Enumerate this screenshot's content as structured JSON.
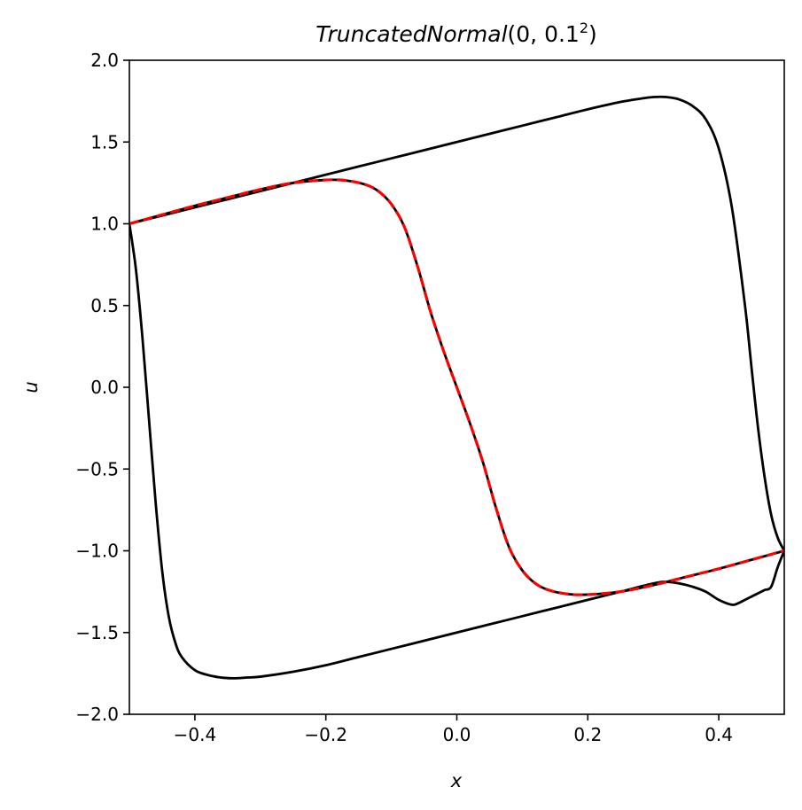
{
  "chart_data": {
    "type": "line",
    "title": "TruncatedNormal(0, 0.1²)",
    "title_parts": {
      "name": "TruncatedNormal",
      "args": "(0, 0.1",
      "exponent": "2",
      "close": ")"
    },
    "xlabel": "x",
    "ylabel": "u",
    "xlim": [
      -0.5,
      0.5
    ],
    "ylim": [
      -2.0,
      2.0
    ],
    "x_ticks": [
      {
        "value": -0.4,
        "label": "−0.4"
      },
      {
        "value": -0.2,
        "label": "−0.2"
      },
      {
        "value": 0.0,
        "label": "0.0"
      },
      {
        "value": 0.2,
        "label": "0.2"
      },
      {
        "value": 0.4,
        "label": "0.4"
      }
    ],
    "y_ticks": [
      {
        "value": 2.0,
        "label": "2.0"
      },
      {
        "value": 1.5,
        "label": "1.5"
      },
      {
        "value": 1.0,
        "label": "1.0"
      },
      {
        "value": 0.5,
        "label": "0.5"
      },
      {
        "value": 0.0,
        "label": "0.0"
      },
      {
        "value": -0.5,
        "label": "−0.5"
      },
      {
        "value": -1.0,
        "label": "−1.0"
      },
      {
        "value": -1.5,
        "label": "−1.5"
      },
      {
        "value": -2.0,
        "label": "−2.0"
      }
    ],
    "grid": false,
    "series": [
      {
        "color": "#000000",
        "style": "solid",
        "x": [
          -0.5,
          -0.49,
          -0.48,
          -0.47,
          -0.46,
          -0.45,
          -0.44,
          -0.43,
          -0.42,
          -0.4,
          -0.38,
          -0.36,
          -0.34,
          -0.32,
          -0.3,
          -0.25,
          -0.2,
          -0.15,
          -0.1,
          -0.05,
          0.0,
          0.05,
          0.1,
          0.15,
          0.2,
          0.25,
          0.3,
          0.32,
          0.34,
          0.36,
          0.38,
          0.4,
          0.42,
          0.43,
          0.44,
          0.45,
          0.46,
          0.47,
          0.48,
          0.49,
          0.5
        ],
        "y": [
          1.0,
          0.72,
          0.3,
          -0.2,
          -0.7,
          -1.12,
          -1.4,
          -1.56,
          -1.65,
          -1.73,
          -1.76,
          -1.775,
          -1.78,
          -1.775,
          -1.77,
          -1.74,
          -1.7,
          -1.65,
          -1.6,
          -1.55,
          -1.5,
          -1.45,
          -1.4,
          -1.35,
          -1.3,
          -1.25,
          -1.2,
          -1.19,
          -1.2,
          -1.22,
          -1.25,
          -1.3,
          -1.33,
          -1.32,
          -1.3,
          -1.28,
          -1.26,
          -1.24,
          -1.22,
          -1.1,
          -1.0
        ]
      },
      {
        "color": "#000000",
        "style": "solid",
        "x": [
          -0.5,
          -0.45,
          -0.4,
          -0.35,
          -0.3,
          -0.25,
          -0.2,
          -0.15,
          -0.1,
          -0.05,
          0.0,
          0.05,
          0.1,
          0.15,
          0.2,
          0.25,
          0.28,
          0.3,
          0.32,
          0.34,
          0.36,
          0.38,
          0.4,
          0.42,
          0.44,
          0.45,
          0.46,
          0.47,
          0.48,
          0.49,
          0.5
        ],
        "y": [
          1.0,
          1.05,
          1.1,
          1.15,
          1.2,
          1.25,
          1.3,
          1.35,
          1.4,
          1.45,
          1.5,
          1.55,
          1.6,
          1.65,
          1.7,
          1.745,
          1.765,
          1.775,
          1.775,
          1.76,
          1.72,
          1.64,
          1.46,
          1.1,
          0.5,
          0.12,
          -0.25,
          -0.55,
          -0.78,
          -0.92,
          -1.0
        ]
      },
      {
        "color": "#000000",
        "style": "solid",
        "x": [
          -0.5,
          -0.45,
          -0.4,
          -0.35,
          -0.3,
          -0.25,
          -0.2,
          -0.17,
          -0.14,
          -0.12,
          -0.1,
          -0.08,
          -0.06,
          -0.04,
          -0.02,
          0.0,
          0.02,
          0.04,
          0.06,
          0.08,
          0.1,
          0.12,
          0.14,
          0.17,
          0.2,
          0.25,
          0.3,
          0.35,
          0.4,
          0.45,
          0.5
        ],
        "y": [
          1.0,
          1.055,
          1.11,
          1.16,
          1.21,
          1.25,
          1.268,
          1.265,
          1.24,
          1.2,
          1.12,
          0.98,
          0.74,
          0.46,
          0.22,
          0.0,
          -0.22,
          -0.46,
          -0.74,
          -0.98,
          -1.12,
          -1.2,
          -1.24,
          -1.265,
          -1.268,
          -1.25,
          -1.21,
          -1.16,
          -1.11,
          -1.055,
          -1.0
        ]
      },
      {
        "color": "#ff0000",
        "style": "dashed",
        "x": [
          -0.5,
          -0.45,
          -0.4,
          -0.35,
          -0.3,
          -0.25,
          -0.2,
          -0.17,
          -0.14,
          -0.12,
          -0.1,
          -0.08,
          -0.06,
          -0.04,
          -0.02,
          0.0,
          0.02,
          0.04,
          0.06,
          0.08,
          0.1,
          0.12,
          0.14,
          0.17,
          0.2,
          0.25,
          0.3,
          0.35,
          0.4,
          0.45,
          0.5
        ],
        "y": [
          1.0,
          1.055,
          1.11,
          1.16,
          1.21,
          1.25,
          1.268,
          1.265,
          1.24,
          1.2,
          1.12,
          0.98,
          0.74,
          0.46,
          0.22,
          0.0,
          -0.22,
          -0.46,
          -0.74,
          -0.98,
          -1.12,
          -1.2,
          -1.24,
          -1.265,
          -1.268,
          -1.25,
          -1.21,
          -1.16,
          -1.11,
          -1.055,
          -1.0
        ]
      }
    ]
  }
}
